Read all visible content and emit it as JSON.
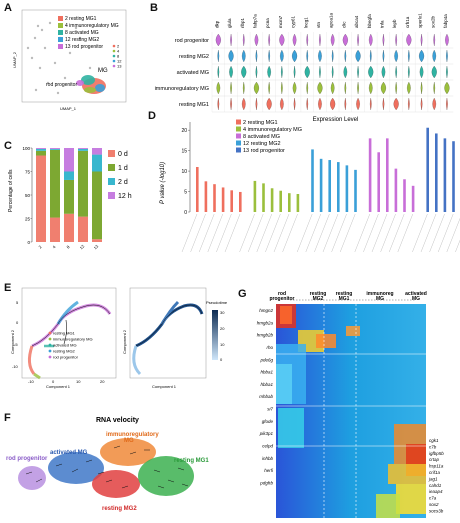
{
  "figure": {
    "panel_labels": [
      "A",
      "B",
      "C",
      "D",
      "E",
      "F",
      "G"
    ]
  },
  "clusters": [
    {
      "id": "2",
      "name": "resting MG1",
      "color": "#ef6f5e"
    },
    {
      "id": "4",
      "name": "immunoregulatory MG",
      "color": "#9bbf3c"
    },
    {
      "id": "8",
      "name": "activated MG",
      "color": "#2fb3a2"
    },
    {
      "id": "12",
      "name": "resting MG2",
      "color": "#3aa0d8"
    },
    {
      "id": "13",
      "name": "rod progenitor",
      "color": "#c86ed8"
    }
  ],
  "panelA": {
    "xlabel": "UMAP_1",
    "ylabel": "UMAP_2",
    "ann_mg": "MG",
    "ann_rod": "rod progenitor",
    "legend": [
      "2",
      "4",
      "8",
      "12",
      "13"
    ]
  },
  "panelB": {
    "genes": [
      "dkp",
      "glula",
      "rlbp1",
      "fabp7a",
      "pcna",
      "mcm7",
      "cyp61",
      "lncg1",
      "vtn",
      "apoa1a",
      "clic",
      "abca4",
      "hbegfa",
      "tnfa",
      "lepb",
      "crh1a",
      "sperlo1",
      "sox2b",
      "fabp4a"
    ],
    "rows": [
      "rod progenitor",
      "resting MG2",
      "activated MG",
      "immunoregulatory MG",
      "resting MG1"
    ],
    "row_ids": [
      "13",
      "12",
      "8",
      "4",
      "2"
    ],
    "xlabel": "Expression Level"
  },
  "panelC": {
    "ylabel": "Percentage of cells",
    "ticks": [
      "100",
      "75",
      "50",
      "25",
      "0"
    ],
    "xticks": [
      "2",
      "4",
      "8",
      "12",
      "13"
    ],
    "legend": [
      {
        "label": "0 d",
        "color": "#f07f6f"
      },
      {
        "label": "1 d",
        "color": "#7da832"
      },
      {
        "label": "2 d",
        "color": "#38b7ce"
      },
      {
        "label": "12 h",
        "color": "#c67de0"
      }
    ]
  },
  "panelD": {
    "ylabel": "P value (-log10)",
    "ticks": [
      "0",
      "5",
      "10",
      "15",
      "20"
    ],
    "legend": [
      {
        "id": "2",
        "label": "resting MG1",
        "color": "#ef6f5e"
      },
      {
        "id": "4",
        "label": "immunoregulatory MG",
        "color": "#9bbf3c"
      },
      {
        "id": "8",
        "label": "activated MG",
        "color": "#c86ed8"
      },
      {
        "id": "12",
        "label": "resting MG2",
        "color": "#3aa0d8"
      },
      {
        "id": "13",
        "label": "rod progenitor",
        "color": "#4472c4"
      }
    ]
  },
  "chart_data": [
    {
      "type": "bar",
      "panel": "C",
      "categories": [
        "2",
        "4",
        "8",
        "12",
        "13"
      ],
      "ylabel": "Percentage of cells",
      "ylim": [
        0,
        100
      ],
      "series": [
        {
          "name": "0 d",
          "values": [
            92,
            26,
            30,
            27,
            3
          ]
        },
        {
          "name": "1 d",
          "values": [
            5,
            72,
            36,
            70,
            72
          ]
        },
        {
          "name": "2 d",
          "values": [
            2,
            1,
            9,
            2,
            18
          ]
        },
        {
          "name": "12 h",
          "values": [
            1,
            1,
            25,
            1,
            7
          ]
        }
      ]
    },
    {
      "type": "bar",
      "panel": "D",
      "ylabel": "P value (-log10)",
      "ylim": [
        0,
        22
      ],
      "series": [
        {
          "name": "resting MG1",
          "values": [
            11,
            7.5,
            6.8,
            6,
            5.3,
            4.9
          ]
        },
        {
          "name": "immunoregulatory MG",
          "values": [
            7.6,
            7,
            5.8,
            5.2,
            4.6,
            4.4
          ]
        },
        {
          "name": "resting MG2",
          "values": [
            15.3,
            13,
            12.7,
            12.2,
            11.4,
            10.3
          ]
        },
        {
          "name": "activated MG",
          "values": [
            18,
            14.6,
            18,
            10.6,
            8,
            6.4
          ]
        },
        {
          "name": "rod progenitor",
          "values": [
            20.6,
            19.2,
            18,
            17.3,
            17.3,
            16.8
          ]
        }
      ]
    }
  ],
  "panelE": {
    "xlabel": "Component 1",
    "ylabel": "Component 2",
    "legend": [
      "resting MG1",
      "immunoregulatory MG",
      "activated MG",
      "resting MG2",
      "rod progenitor"
    ],
    "pseudotime_label": "Pseudotime",
    "pseudotime_ticks": [
      "30",
      "20",
      "10",
      "0"
    ],
    "xticks": [
      "-10",
      "0",
      "10",
      "20"
    ],
    "yticks": [
      "5",
      "0",
      "-5",
      "-10"
    ]
  },
  "panelF": {
    "title": "RNA velocity",
    "labels": {
      "rod": "rod progenitor",
      "act": "activated MG",
      "imm": "immunoregulatory",
      "imm2": "MG",
      "rest1": "resting MG1",
      "rest2": "resting MG2"
    }
  },
  "panelG": {
    "top_labels": [
      "rod progenitor",
      "resting MG2",
      "resting MG1",
      "immunoreg MG",
      "activated MG"
    ],
    "left_genes": [
      "hmgn2",
      "hmgb2a",
      "hmgb2b",
      "rho",
      "pde6g",
      "hbba1",
      "hbba1",
      "mhbab",
      "si7",
      "gfode",
      "pik3p1",
      "celpd",
      "inhbb",
      "herfi",
      "pdgfrb"
    ],
    "right_genes": [
      "cgk1",
      "c7b",
      "igfbp5b",
      "crtap",
      "hsp11a",
      "crif1a",
      "jag1",
      "cahd1",
      "ieaap4",
      "c7a",
      "sox2",
      "socs3b"
    ]
  }
}
